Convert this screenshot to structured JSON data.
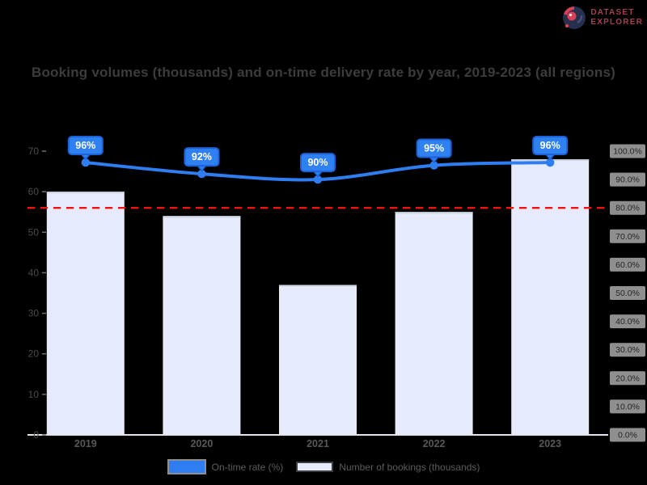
{
  "logo": {
    "line1": "DATASET",
    "line2": "EXPLORER",
    "text_color": "#a53e50",
    "icon_color": "#262f4d",
    "icon_accent": "#d94056"
  },
  "title": "Booking volumes (thousands) and on-time delivery rate by year, 2019-2023 (all regions)",
  "chart_data": {
    "type": "bar",
    "categories": [
      "2019",
      "2020",
      "2021",
      "2022",
      "2023"
    ],
    "series": [
      {
        "name": "Number of bookings (thousands)",
        "kind": "bar",
        "axis": "left",
        "color": "#e5ebfa",
        "edge_color": "#ccd2df",
        "values": [
          60,
          54,
          37,
          55,
          68
        ]
      },
      {
        "name": "On-time rate (%)",
        "kind": "line",
        "axis": "right",
        "color": "#2e7ef2",
        "values": [
          96,
          92,
          90,
          95,
          96
        ],
        "point_labels": [
          "96%",
          "92%",
          "90%",
          "95%",
          "96%"
        ],
        "point_label_style": {
          "fill": "#2f80f0",
          "stroke": "#1b62d8",
          "text_color": "#ffffff"
        }
      }
    ],
    "left_axis": {
      "min": 0,
      "max": 70,
      "step": 10,
      "tick_labels": [
        "70",
        "60",
        "50",
        "40",
        "30",
        "20",
        "10",
        "0"
      ]
    },
    "right_axis": {
      "min": 0,
      "max": 100,
      "step": 10,
      "tick_labels": [
        "100.0%",
        "90.0%",
        "80.0%",
        "70.0%",
        "60.0%",
        "50.0%",
        "40.0%",
        "30.0%",
        "20.0%",
        "10.0%",
        "0.0%"
      ],
      "label_bg": "#8f8f8f",
      "label_text_color": "#262626"
    },
    "reference_line": {
      "axis": "right",
      "value": 80,
      "color": "#f31212",
      "style": "dashed"
    },
    "grid": false,
    "legend_position": "bottom",
    "axis_line_color": "#e4e4ec"
  },
  "legend": {
    "items": [
      {
        "label": "On-time rate (%)",
        "swatch_color": "#2e7ef2",
        "swatch_border": "#8f8f8f",
        "kind": "line"
      },
      {
        "label": "Number of bookings (thousands)",
        "swatch_color": "#e5ebfa",
        "swatch_border": "#3c3c3c",
        "kind": "bar"
      }
    ]
  }
}
